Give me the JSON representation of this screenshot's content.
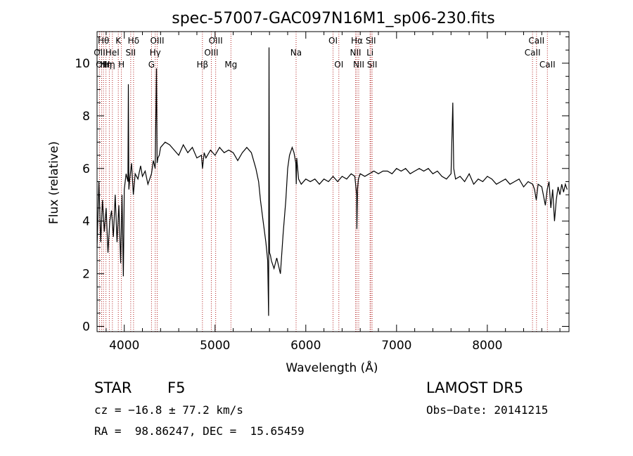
{
  "chart_data": {
    "type": "line",
    "title": "spec-57007-GAC097N16M1_sp06-230.fits",
    "xlabel": "Wavelength (Å)",
    "ylabel": "Flux (relative)",
    "xlim": [
      3700,
      8900
    ],
    "ylim": [
      -0.2,
      11.2
    ],
    "xticks": [
      4000,
      5000,
      6000,
      7000,
      8000
    ],
    "yticks": [
      0,
      2,
      4,
      6,
      8,
      10
    ],
    "grid": false,
    "series": [
      {
        "x": [
          3700,
          3720,
          3740,
          3760,
          3780,
          3800,
          3820,
          3840,
          3860,
          3880,
          3900,
          3920,
          3940,
          3960,
          3975,
          3990,
          4000,
          4020,
          4040,
          4045,
          4050,
          4060,
          4080,
          4100,
          4120,
          4150,
          4180,
          4200,
          4230,
          4260,
          4300,
          4320,
          4340,
          4355,
          4362,
          4370,
          4385,
          4400,
          4450,
          4500,
          4550,
          4600,
          4650,
          4700,
          4750,
          4800,
          4850,
          4862,
          4880,
          4900,
          4950,
          5000,
          5050,
          5100,
          5150,
          5200,
          5250,
          5300,
          5350,
          5400,
          5450,
          5480,
          5500,
          5530,
          5560,
          5580,
          5590,
          5595,
          5600,
          5610,
          5620,
          5650,
          5680,
          5700,
          5720,
          5750,
          5780,
          5800,
          5820,
          5850,
          5870,
          5890,
          5895,
          5900,
          5920,
          5950,
          6000,
          6050,
          6100,
          6150,
          6200,
          6250,
          6300,
          6350,
          6400,
          6450,
          6500,
          6540,
          6560,
          6563,
          6570,
          6580,
          6600,
          6650,
          6700,
          6750,
          6800,
          6850,
          6900,
          6950,
          7000,
          7050,
          7100,
          7150,
          7200,
          7250,
          7300,
          7350,
          7400,
          7450,
          7500,
          7550,
          7600,
          7620,
          7630,
          7640,
          7650,
          7700,
          7750,
          7800,
          7850,
          7900,
          7950,
          8000,
          8050,
          8100,
          8150,
          8200,
          8250,
          8300,
          8350,
          8400,
          8450,
          8500,
          8520,
          8540,
          8560,
          8600,
          8640,
          8660,
          8680,
          8700,
          8720,
          8740,
          8760,
          8780,
          8800,
          8820,
          8840,
          8860,
          8880
        ],
        "y": [
          3.0,
          5.5,
          3.2,
          4.8,
          3.6,
          4.5,
          2.8,
          4.0,
          4.4,
          3.4,
          5.0,
          3.2,
          4.6,
          2.4,
          5.0,
          1.9,
          5.2,
          5.8,
          5.5,
          9.2,
          5.2,
          5.6,
          6.2,
          5.0,
          5.8,
          5.6,
          6.1,
          5.7,
          5.9,
          5.4,
          5.8,
          6.3,
          6.0,
          9.8,
          6.2,
          6.4,
          6.5,
          6.8,
          7.0,
          6.9,
          6.7,
          6.5,
          6.9,
          6.6,
          6.8,
          6.4,
          6.5,
          6.0,
          6.6,
          6.4,
          6.7,
          6.5,
          6.8,
          6.6,
          6.7,
          6.6,
          6.3,
          6.6,
          6.8,
          6.6,
          6.0,
          5.5,
          4.8,
          4.0,
          3.2,
          2.5,
          0.4,
          10.6,
          2.8,
          2.7,
          2.5,
          2.2,
          2.6,
          2.3,
          2.0,
          3.5,
          4.8,
          6.0,
          6.5,
          6.8,
          6.6,
          6.2,
          5.4,
          6.4,
          5.6,
          5.4,
          5.6,
          5.5,
          5.6,
          5.4,
          5.6,
          5.5,
          5.7,
          5.5,
          5.7,
          5.6,
          5.8,
          5.7,
          5.0,
          3.7,
          5.2,
          5.6,
          5.8,
          5.7,
          5.8,
          5.9,
          5.8,
          5.9,
          5.9,
          5.8,
          6.0,
          5.9,
          6.0,
          5.8,
          5.9,
          6.0,
          5.9,
          6.0,
          5.8,
          5.9,
          5.7,
          5.6,
          5.8,
          8.5,
          6.0,
          5.8,
          5.6,
          5.7,
          5.5,
          5.8,
          5.4,
          5.6,
          5.5,
          5.7,
          5.6,
          5.4,
          5.5,
          5.6,
          5.4,
          5.5,
          5.6,
          5.3,
          5.5,
          5.4,
          5.2,
          4.8,
          5.4,
          5.3,
          4.6,
          5.2,
          5.5,
          4.5,
          5.2,
          4.0,
          4.8,
          5.3,
          5.0,
          5.4,
          5.1,
          5.4,
          5.2
        ]
      }
    ],
    "lines": [
      {
        "x": 3727,
        "label": "OII",
        "row": 1
      },
      {
        "x": 3750,
        "label": "OII",
        "row": 2
      },
      {
        "x": 3771,
        "label": "Hθ",
        "row": 0
      },
      {
        "x": 3798,
        "label": "Hη",
        "row": 2
      },
      {
        "x": 3835,
        "label": "Hη",
        "row": 2
      },
      {
        "x": 3869,
        "label": "HeI",
        "row": 1
      },
      {
        "x": 3934,
        "label": "K",
        "row": 0
      },
      {
        "x": 3968,
        "label": "H",
        "row": 2
      },
      {
        "x": 4071,
        "label": "SII",
        "row": 1
      },
      {
        "x": 4102,
        "label": "Hδ",
        "row": 0
      },
      {
        "x": 4300,
        "label": "G",
        "row": 2
      },
      {
        "x": 4341,
        "label": "Hγ",
        "row": 1
      },
      {
        "x": 4363,
        "label": "OIII",
        "row": 0
      },
      {
        "x": 4861,
        "label": "Hβ",
        "row": 2
      },
      {
        "x": 4959,
        "label": "OIII",
        "row": 1
      },
      {
        "x": 5007,
        "label": "OIII",
        "row": 0
      },
      {
        "x": 5175,
        "label": "Mg",
        "row": 2
      },
      {
        "x": 5893,
        "label": "Na",
        "row": 1
      },
      {
        "x": 6300,
        "label": "OI",
        "row": 0
      },
      {
        "x": 6364,
        "label": "OI",
        "row": 2
      },
      {
        "x": 6548,
        "label": "NII",
        "row": 1
      },
      {
        "x": 6563,
        "label": "Hα",
        "row": 0
      },
      {
        "x": 6583,
        "label": "NII",
        "row": 2
      },
      {
        "x": 6708,
        "label": "Li",
        "row": 1
      },
      {
        "x": 6716,
        "label": "SII",
        "row": 0
      },
      {
        "x": 6731,
        "label": "SII",
        "row": 2
      },
      {
        "x": 8498,
        "label": "CaII",
        "row": 1
      },
      {
        "x": 8542,
        "label": "CaII",
        "row": 0
      },
      {
        "x": 8662,
        "label": "CaII",
        "row": 2
      }
    ]
  },
  "info": {
    "class": "STAR",
    "subclass": "F5",
    "survey": "LAMOST DR5",
    "cz": "cz = −16.8 ± 77.2 km/s",
    "obs_date": "Obs−Date: 20141215",
    "coords": "RA =  98.86247, DEC =  15.65459"
  }
}
